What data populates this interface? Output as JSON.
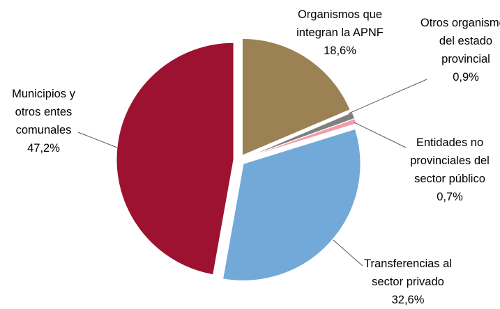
{
  "chart_data": {
    "type": "pie",
    "categories": [
      "Organismos que integran la APNF",
      "Otros organismos del estado provincial",
      "Entidades no provinciales del sector público",
      "Transferencias al sector privado",
      "Municipios y otros entes comunales"
    ],
    "values": [
      18.6,
      0.9,
      0.7,
      32.6,
      47.2
    ],
    "value_labels": [
      "18,6%",
      "0,9%",
      "0,7%",
      "32,6%",
      "47,2%"
    ],
    "colors": [
      "#9c8155",
      "#7f7f7f",
      "#f39bab",
      "#72a9d9",
      "#9c1230"
    ]
  }
}
